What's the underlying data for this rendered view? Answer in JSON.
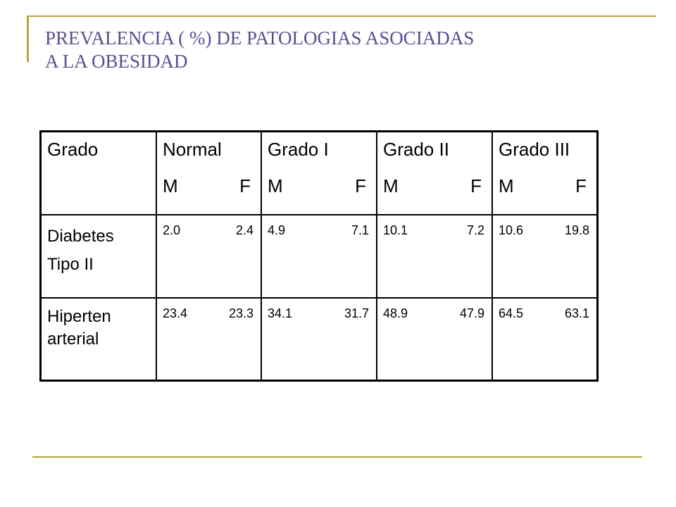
{
  "title": {
    "line1": "PREVALENCIA ( %) DE PATOLOGIAS ASOCIADAS",
    "line2": "A LA OBESIDAD"
  },
  "table": {
    "header": {
      "grado": "Grado",
      "columns": [
        {
          "name": "Normal",
          "m": "M",
          "f": "F"
        },
        {
          "name": "Grado I",
          "m": "M",
          "f": "F"
        },
        {
          "name": "Grado II",
          "m": "M",
          "f": "F"
        },
        {
          "name": "Grado III",
          "m": "M",
          "f": "F"
        }
      ]
    },
    "rows": [
      {
        "label_line1": "Diabetes",
        "label_line2": "Tipo II",
        "cells": [
          {
            "m": "2.0",
            "f": "2.4"
          },
          {
            "m": "4.9",
            "f": "7.1"
          },
          {
            "m": "10.1",
            "f": "7.2"
          },
          {
            "m": "10.6",
            "f": "19.8"
          }
        ]
      },
      {
        "label_line1": "Hiperten",
        "label_line2": "arterial",
        "cells": [
          {
            "m": "23.4",
            "f": "23.3"
          },
          {
            "m": "34.1",
            "f": "31.7"
          },
          {
            "m": "48.9",
            "f": "47.9"
          },
          {
            "m": "64.5",
            "f": "63.1"
          }
        ]
      }
    ]
  },
  "colors": {
    "title": "#5c4e92",
    "rule": "#b5a43a"
  }
}
